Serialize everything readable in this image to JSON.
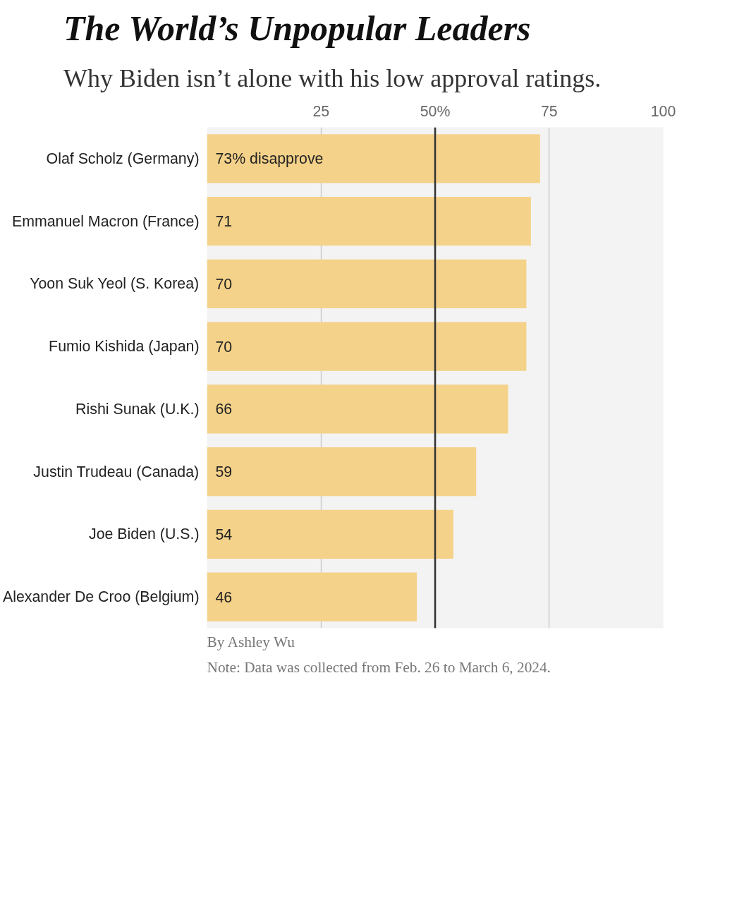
{
  "chart_data": {
    "type": "bar",
    "orientation": "horizontal",
    "title": "The World’s Unpopular Leaders",
    "subtitle": "Why Biden isn’t alone with his low approval ratings.",
    "categories": [
      "Olaf Scholz (Germany)",
      "Emmanuel Macron (France)",
      "Yoon Suk Yeol (S. Korea)",
      "Fumio Kishida (Japan)",
      "Rishi Sunak (U.K.)",
      "Justin Trudeau (Canada)",
      "Joe Biden (U.S.)",
      "Alexander De Croo (Belgium)"
    ],
    "values": [
      73,
      71,
      70,
      70,
      66,
      59,
      54,
      46
    ],
    "value_labels": [
      "73% disapprove",
      "71",
      "70",
      "70",
      "66",
      "59",
      "54",
      "46"
    ],
    "color": "#f5d28a",
    "xlim": [
      0,
      100
    ],
    "xticks": [
      25,
      {
        "value": 50,
        "label": "50%"
      },
      75,
      100
    ],
    "grid": "x",
    "ref_lines": [
      {
        "axis": "x",
        "value": 50,
        "label": null,
        "color": "#333333"
      }
    ],
    "annotations": [
      "Note: Data was collected from Feb. 26 to March 6, 2024.",
      "By Ashley Wu"
    ]
  }
}
